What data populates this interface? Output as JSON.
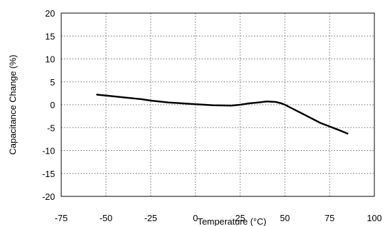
{
  "chart_data": {
    "type": "line",
    "title": "",
    "xlabel": "Temperature (°C)",
    "ylabel": "Capacitance Change (%)",
    "xlim": [
      -75,
      100
    ],
    "ylim": [
      -20,
      20
    ],
    "xticks": [
      -75,
      -50,
      -25,
      0,
      25,
      50,
      75,
      100
    ],
    "yticks": [
      -20,
      -15,
      -10,
      -5,
      0,
      5,
      10,
      15,
      20
    ],
    "grid": true,
    "legend": "none",
    "series": [
      {
        "x": [
          -55,
          -45,
          -40,
          -30,
          -25,
          -15,
          0,
          10,
          20,
          25,
          30,
          35,
          40,
          45,
          48,
          50,
          55,
          60,
          70,
          80,
          85
        ],
        "y": [
          2.2,
          1.8,
          1.6,
          1.2,
          0.9,
          0.5,
          0.1,
          -0.1,
          -0.2,
          0.0,
          0.3,
          0.5,
          0.7,
          0.6,
          0.3,
          0.0,
          -1.0,
          -2.0,
          -4.0,
          -5.5,
          -6.3
        ]
      }
    ]
  },
  "colors": {
    "line": "#000000",
    "grid": "#8c8c8c",
    "frame": "#000000"
  }
}
